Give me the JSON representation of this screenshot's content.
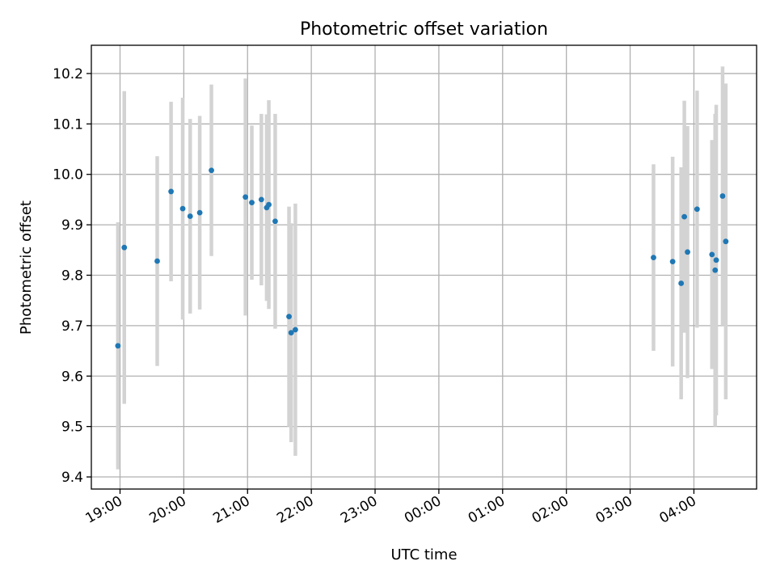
{
  "chart_data": {
    "type": "scatter",
    "title": "Photometric offset variation",
    "xlabel": "UTC time",
    "ylabel": "Photometric offset",
    "x_tick_labels": [
      "19:00",
      "20:00",
      "21:00",
      "22:00",
      "23:00",
      "00:00",
      "01:00",
      "02:00",
      "03:00",
      "04:00"
    ],
    "y_ticks": [
      9.4,
      9.5,
      9.6,
      9.7,
      9.8,
      9.9,
      10.0,
      10.1,
      10.2
    ],
    "y_tick_labels": [
      "9.4",
      "9.5",
      "9.6",
      "9.7",
      "9.8",
      "9.9",
      "10.0",
      "10.1",
      "10.2"
    ],
    "xlim": [
      "18:33",
      "04:59"
    ],
    "ylim": [
      9.376,
      10.256
    ],
    "grid": true,
    "point_color": "#1f77b4",
    "errorbar_color": "#d3d3d3",
    "points": [
      {
        "x": "18:58",
        "y": 9.66,
        "err": 0.245
      },
      {
        "x": "19:04",
        "y": 9.855,
        "err": 0.31
      },
      {
        "x": "19:35",
        "y": 9.828,
        "err": 0.208
      },
      {
        "x": "19:48",
        "y": 9.966,
        "err": 0.178
      },
      {
        "x": "19:59",
        "y": 9.932,
        "err": 0.22
      },
      {
        "x": "20:06",
        "y": 9.917,
        "err": 0.193
      },
      {
        "x": "20:15",
        "y": 9.924,
        "err": 0.192
      },
      {
        "x": "20:26",
        "y": 10.008,
        "err": 0.17
      },
      {
        "x": "20:58",
        "y": 9.955,
        "err": 0.235
      },
      {
        "x": "21:04",
        "y": 9.944,
        "err": 0.153
      },
      {
        "x": "21:13",
        "y": 9.95,
        "err": 0.17
      },
      {
        "x": "21:18",
        "y": 9.934,
        "err": 0.185
      },
      {
        "x": "21:20",
        "y": 9.94,
        "err": 0.207
      },
      {
        "x": "21:26",
        "y": 9.907,
        "err": 0.213
      },
      {
        "x": "21:39",
        "y": 9.718,
        "err": 0.218
      },
      {
        "x": "21:41",
        "y": 9.686,
        "err": 0.217
      },
      {
        "x": "21:45",
        "y": 9.692,
        "err": 0.25
      },
      {
        "x": "03:22",
        "y": 9.835,
        "err": 0.185
      },
      {
        "x": "03:40",
        "y": 9.827,
        "err": 0.208
      },
      {
        "x": "03:48",
        "y": 9.784,
        "err": 0.23
      },
      {
        "x": "03:51",
        "y": 9.916,
        "err": 0.23
      },
      {
        "x": "03:54",
        "y": 9.846,
        "err": 0.25
      },
      {
        "x": "04:03",
        "y": 9.931,
        "err": 0.235
      },
      {
        "x": "04:17",
        "y": 9.841,
        "err": 0.227
      },
      {
        "x": "04:20",
        "y": 9.81,
        "err": 0.31
      },
      {
        "x": "04:21",
        "y": 9.83,
        "err": 0.308
      },
      {
        "x": "04:27",
        "y": 9.957,
        "err": 0.257
      },
      {
        "x": "04:30",
        "y": 9.867,
        "err": 0.313
      }
    ]
  }
}
